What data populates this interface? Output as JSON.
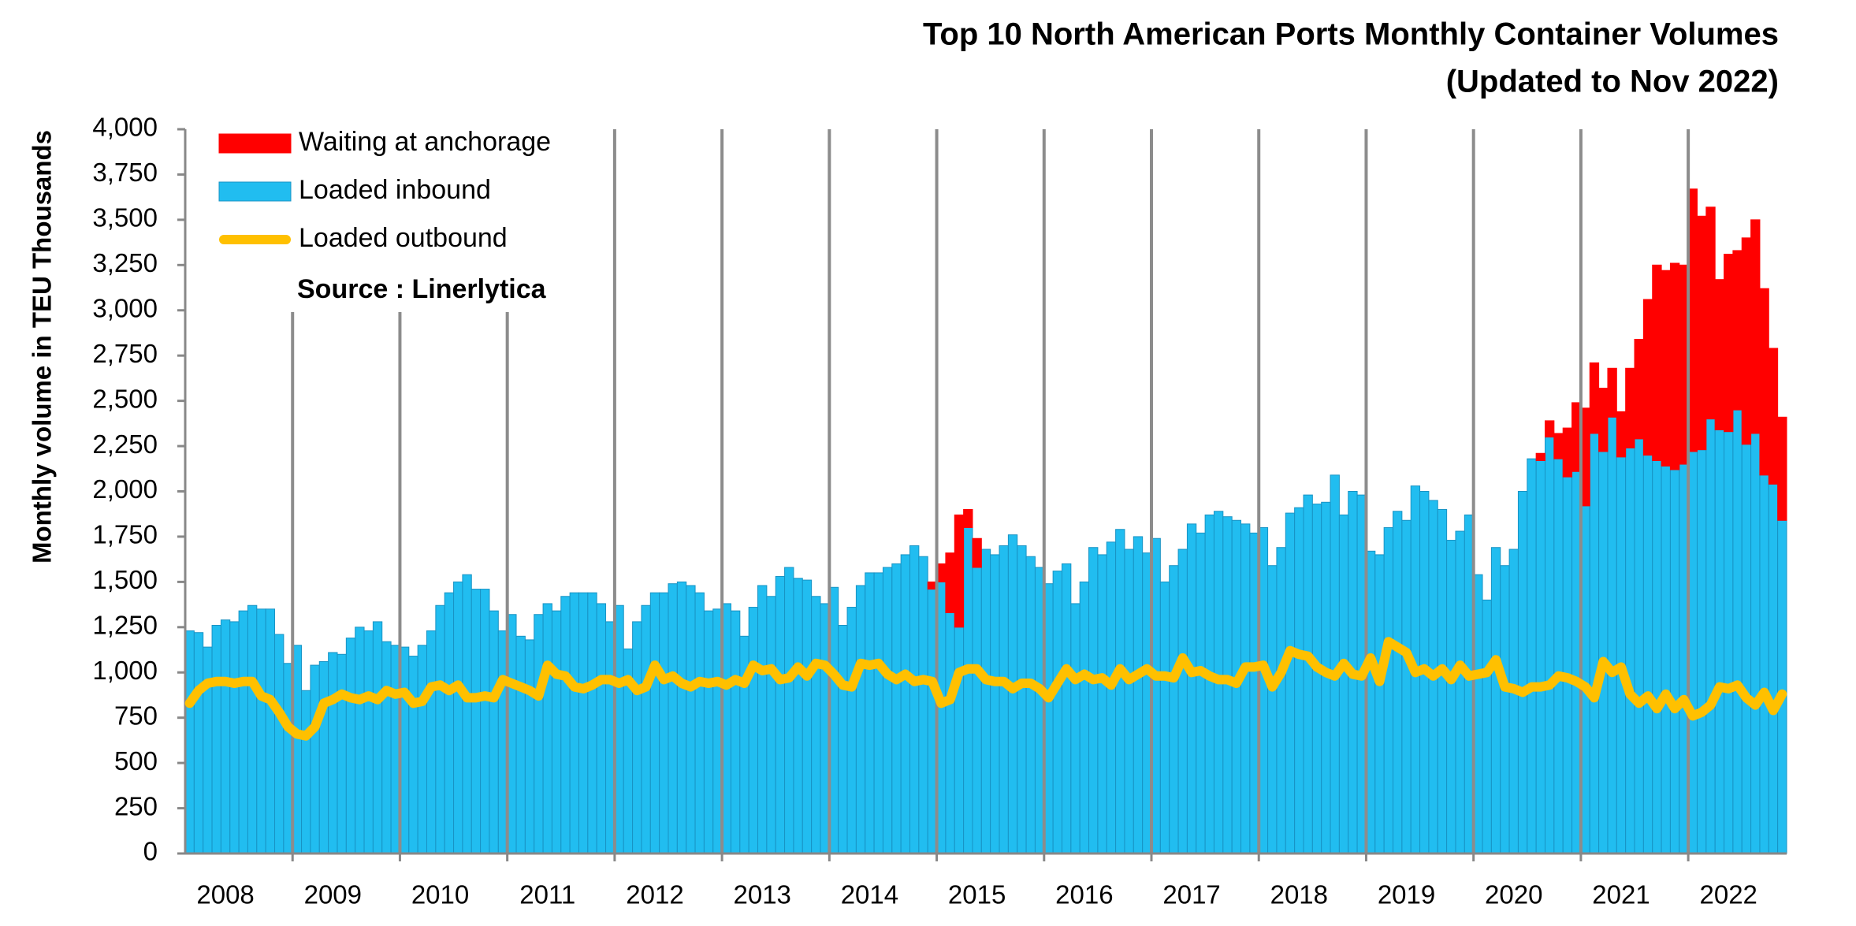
{
  "chart_data": {
    "type": "stacked-bar-line",
    "title": "Top 10 North American Ports Monthly Container Volumes",
    "subtitle": "(Updated to Nov 2022)",
    "y_label": "Monthly volume in TEU Thousands",
    "source": "Source : Linerlytica",
    "categories": [
      null,
      null,
      null,
      null,
      "2008",
      null,
      null,
      null,
      null,
      null,
      null,
      null,
      null,
      null,
      null,
      null,
      "2009",
      null,
      null,
      null,
      null,
      null,
      null,
      null,
      null,
      null,
      null,
      null,
      "2010",
      null,
      null,
      null,
      null,
      null,
      null,
      null,
      null,
      null,
      null,
      null,
      "2011",
      null,
      null,
      null,
      null,
      null,
      null,
      null,
      null,
      null,
      null,
      null,
      "2012",
      null,
      null,
      null,
      null,
      null,
      null,
      null,
      null,
      null,
      null,
      null,
      "2013",
      null,
      null,
      null,
      null,
      null,
      null,
      null,
      null,
      null,
      null,
      null,
      "2014",
      null,
      null,
      null,
      null,
      null,
      null,
      null,
      null,
      null,
      null,
      null,
      "2015",
      null,
      null,
      null,
      null,
      null,
      null,
      null,
      null,
      null,
      null,
      null,
      "2016",
      null,
      null,
      null,
      null,
      null,
      null,
      null,
      null,
      null,
      null,
      null,
      "2017",
      null,
      null,
      null,
      null,
      null,
      null,
      null,
      null,
      null,
      null,
      null,
      "2018",
      null,
      null,
      null,
      null,
      null,
      null,
      null,
      null,
      null,
      null,
      null,
      "2019",
      null,
      null,
      null,
      null,
      null,
      null,
      null,
      null,
      null,
      null,
      null,
      "2020",
      null,
      null,
      null,
      null,
      null,
      null,
      null,
      null,
      null,
      null,
      null,
      "2021",
      null,
      null,
      null,
      null,
      null,
      null,
      null,
      null,
      null,
      null,
      null,
      "2022",
      null,
      null,
      null,
      null,
      null,
      null
    ],
    "series": [
      {
        "name": "Waiting at anchorage",
        "color": "#ff0000",
        "kind": "bar",
        "stack_on": 1,
        "values": [
          null,
          null,
          null,
          null,
          null,
          null,
          null,
          null,
          null,
          null,
          null,
          null,
          null,
          null,
          null,
          null,
          null,
          null,
          null,
          null,
          null,
          null,
          null,
          null,
          null,
          null,
          null,
          null,
          null,
          null,
          null,
          null,
          null,
          null,
          null,
          null,
          null,
          null,
          null,
          null,
          null,
          null,
          null,
          null,
          null,
          null,
          null,
          null,
          null,
          null,
          null,
          null,
          null,
          null,
          null,
          null,
          null,
          null,
          null,
          null,
          null,
          null,
          null,
          null,
          null,
          null,
          null,
          null,
          null,
          null,
          null,
          null,
          null,
          null,
          null,
          null,
          null,
          null,
          null,
          null,
          null,
          null,
          null,
          40,
          100,
          330,
          620,
          100,
          160,
          null,
          null,
          null,
          null,
          null,
          null,
          null,
          null,
          null,
          null,
          null,
          null,
          null,
          null,
          null,
          null,
          null,
          null,
          null,
          null,
          null,
          null,
          null,
          null,
          null,
          null,
          null,
          null,
          null,
          null,
          null,
          null,
          null,
          null,
          null,
          null,
          null,
          null,
          null,
          null,
          null,
          null,
          null,
          null,
          null,
          null,
          null,
          null,
          null,
          null,
          null,
          null,
          null,
          null,
          null,
          null,
          null,
          null,
          null,
          null,
          null,
          null,
          40,
          90,
          140,
          270,
          380,
          540,
          390,
          350,
          270,
          250,
          440,
          550,
          860,
          1080,
          1080,
          1140,
          1100,
          1450,
          1290,
          1170,
          830,
          980,
          880,
          1140,
          1180,
          1030,
          750,
          570
        ]
      },
      {
        "name": "Loaded inbound",
        "color": "#21bdf0",
        "kind": "bar",
        "values": [
          1230,
          1220,
          1140,
          1260,
          1290,
          1280,
          1340,
          1370,
          1350,
          1350,
          1210,
          1050,
          1150,
          900,
          1040,
          1060,
          1110,
          1100,
          1190,
          1250,
          1230,
          1280,
          1170,
          1150,
          1140,
          1090,
          1150,
          1230,
          1370,
          1440,
          1500,
          1540,
          1460,
          1460,
          1340,
          1230,
          1320,
          1200,
          1180,
          1320,
          1380,
          1340,
          1420,
          1440,
          1440,
          1440,
          1380,
          1280,
          1370,
          1130,
          1280,
          1370,
          1440,
          1440,
          1490,
          1500,
          1480,
          1440,
          1340,
          1350,
          1380,
          1340,
          1200,
          1360,
          1480,
          1420,
          1530,
          1580,
          1520,
          1510,
          1420,
          1380,
          1470,
          1260,
          1360,
          1480,
          1550,
          1550,
          1580,
          1600,
          1650,
          1700,
          1640,
          1460,
          1500,
          1330,
          1250,
          1800,
          1580,
          1680,
          1650,
          1700,
          1760,
          1700,
          1640,
          1580,
          1490,
          1560,
          1600,
          1380,
          1500,
          1690,
          1650,
          1720,
          1790,
          1680,
          1750,
          1660,
          1740,
          1500,
          1590,
          1680,
          1820,
          1770,
          1870,
          1890,
          1860,
          1840,
          1820,
          1770,
          1800,
          1590,
          1690,
          1880,
          1910,
          1980,
          1930,
          1940,
          2090,
          1870,
          2000,
          1980,
          1670,
          1650,
          1800,
          1890,
          1840,
          2030,
          2000,
          1950,
          1900,
          1730,
          1780,
          1870,
          1540,
          1400,
          1690,
          1590,
          1680,
          2000,
          2180,
          2170,
          2300,
          2180,
          2080,
          2110,
          1920,
          2320,
          2220,
          2410,
          2190,
          2240,
          2290,
          2200,
          2170,
          2140,
          2120,
          2150,
          2220,
          2230,
          2400,
          2340,
          2330,
          2450,
          2260,
          2320,
          2090,
          2040,
          1840
        ]
      },
      {
        "name": "Loaded outbound",
        "color": "#ffc000",
        "kind": "line",
        "values": [
          830,
          900,
          940,
          950,
          950,
          940,
          950,
          950,
          870,
          850,
          780,
          700,
          660,
          650,
          700,
          830,
          850,
          880,
          860,
          850,
          870,
          850,
          900,
          880,
          890,
          830,
          840,
          920,
          930,
          900,
          930,
          860,
          860,
          870,
          860,
          960,
          940,
          920,
          900,
          870,
          1040,
          990,
          980,
          920,
          910,
          930,
          960,
          960,
          940,
          960,
          900,
          920,
          1040,
          960,
          980,
          940,
          920,
          950,
          940,
          950,
          930,
          960,
          940,
          1040,
          1010,
          1020,
          960,
          970,
          1030,
          980,
          1050,
          1040,
          990,
          930,
          920,
          1050,
          1040,
          1050,
          990,
          960,
          990,
          950,
          960,
          950,
          830,
          850,
          1000,
          1020,
          1020,
          960,
          950,
          950,
          910,
          940,
          940,
          910,
          860,
          940,
          1020,
          960,
          990,
          960,
          970,
          930,
          1020,
          960,
          990,
          1020,
          980,
          980,
          970,
          1080,
          1000,
          1010,
          980,
          960,
          960,
          940,
          1030,
          1030,
          1040,
          920,
          1000,
          1120,
          1100,
          1090,
          1030,
          1000,
          980,
          1050,
          990,
          980,
          1080,
          950,
          1170,
          1140,
          1110,
          1000,
          1020,
          980,
          1020,
          960,
          1040,
          980,
          990,
          1000,
          1070,
          920,
          910,
          890,
          920,
          920,
          930,
          980,
          970,
          950,
          920,
          860,
          1060,
          1000,
          1030,
          880,
          830,
          870,
          800,
          880,
          800,
          850,
          760,
          780,
          820,
          920,
          910,
          930,
          860,
          820,
          890,
          790,
          880
        ]
      }
    ],
    "ylim": [
      0,
      4000
    ],
    "yticks": [
      0,
      250,
      500,
      750,
      {
        "value": 1000,
        "label": "1,000"
      },
      {
        "value": 1250,
        "label": "1,250"
      },
      {
        "value": 1500,
        "label": "1,500"
      },
      {
        "value": 1750,
        "label": "1,750"
      },
      {
        "value": 2000,
        "label": "2,000"
      },
      {
        "value": 2250,
        "label": "2,250"
      },
      {
        "value": 2500,
        "label": "2,500"
      },
      {
        "value": 2750,
        "label": "2,750"
      },
      {
        "value": 3000,
        "label": "3,000"
      },
      {
        "value": 3250,
        "label": "3,250"
      },
      {
        "value": 3500,
        "label": "3,500"
      },
      {
        "value": 3750,
        "label": "3,750"
      },
      {
        "value": 4000,
        "label": "4,000"
      }
    ],
    "legend": "upper left"
  }
}
